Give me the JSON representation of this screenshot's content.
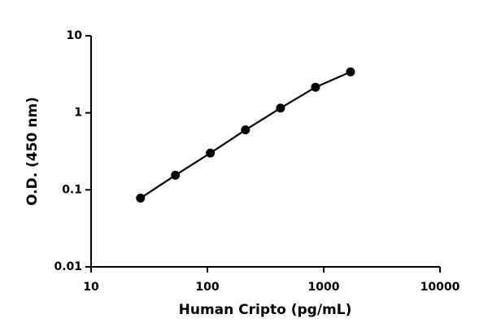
{
  "chart_data": {
    "type": "scatter",
    "x_label": "Human Cripto (pg/mL)",
    "y_label": "O.D. (450 nm)",
    "x_log": true,
    "y_log": true,
    "x": [
      26.6,
      53.1,
      106,
      212.5,
      425,
      850,
      1700
    ],
    "series": [
      {
        "color": "#000000",
        "values": [
          0.078,
          0.155,
          0.3,
          0.6,
          1.15,
          2.15,
          3.4
        ]
      }
    ],
    "xlim": [
      10,
      10000
    ],
    "xticks": [
      10,
      100,
      1000,
      10000
    ],
    "ylim": [
      0.01,
      10
    ],
    "yticks": [
      0.01,
      0.1,
      1,
      10
    ]
  }
}
